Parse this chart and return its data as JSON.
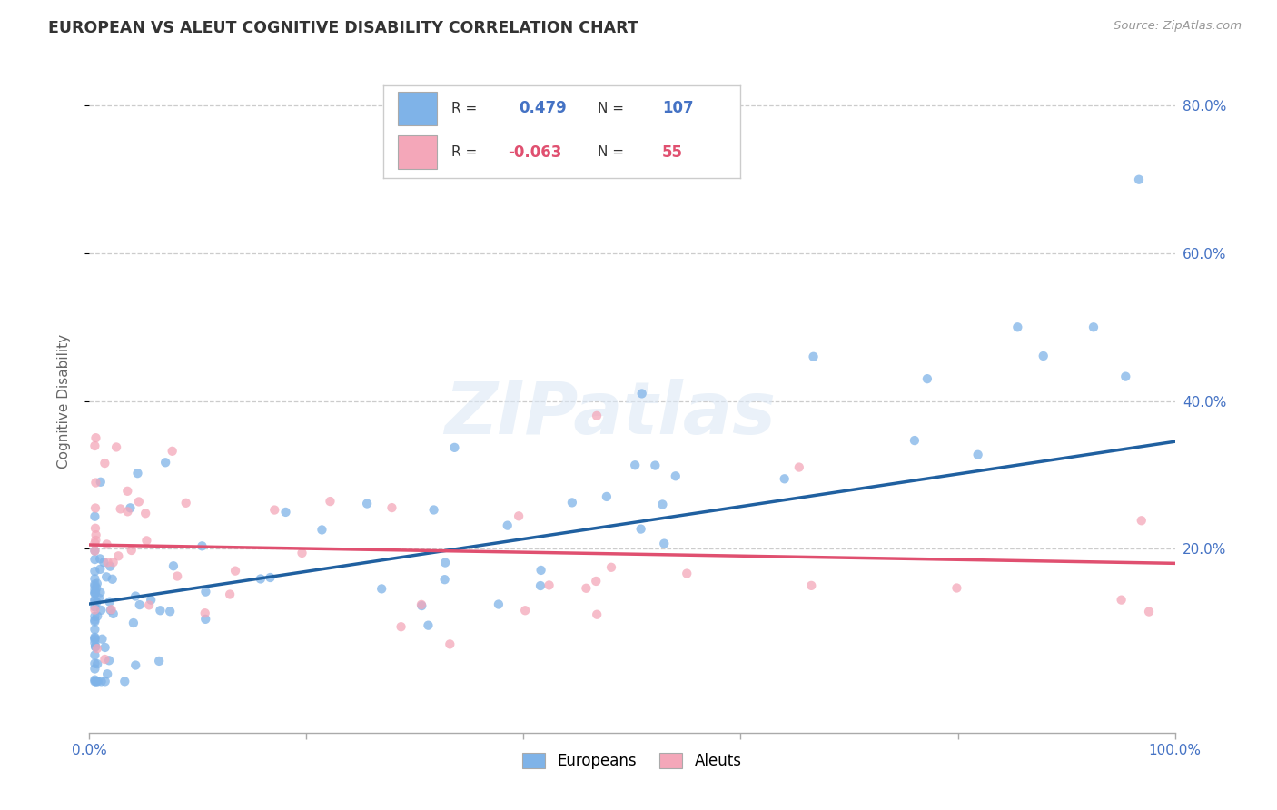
{
  "title": "EUROPEAN VS ALEUT COGNITIVE DISABILITY CORRELATION CHART",
  "source": "Source: ZipAtlas.com",
  "ylabel": "Cognitive Disability",
  "ytick_labels": [
    "20.0%",
    "40.0%",
    "60.0%",
    "80.0%"
  ],
  "ytick_values": [
    0.2,
    0.4,
    0.6,
    0.8
  ],
  "legend_label1": "Europeans",
  "legend_label2": "Aleuts",
  "r1": 0.479,
  "n1": 107,
  "r2": -0.063,
  "n2": 55,
  "color_european": "#7fb3e8",
  "color_aleut": "#f4a7b9",
  "color_line_european": "#2060a0",
  "color_line_aleut": "#e05070",
  "watermark": "ZIPatlas",
  "xlim": [
    0.0,
    1.0
  ],
  "ylim": [
    -0.05,
    0.85
  ]
}
